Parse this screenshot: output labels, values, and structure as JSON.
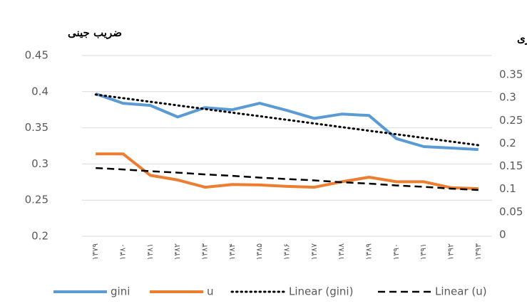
{
  "chart_data": {
    "type": "line",
    "y_title": "ضریب جینی",
    "y2_title": "نرخ بیکاری",
    "categories": [
      "۱۳۷۹",
      "۱۳۸۰",
      "۱۳۸۱",
      "۱۳۸۲",
      "۱۳۸۳",
      "۱۳۸۴",
      "۱۳۸۵",
      "۱۳۸۶",
      "۱۳۸۷",
      "۱۳۸۸",
      "۱۳۸۹",
      "۱۳۹۰",
      "۱۳۹۱",
      "۱۳۹۲",
      "۱۳۹۳"
    ],
    "series": [
      {
        "name": "gini",
        "color": "#5b9bd5",
        "line_style": "solid",
        "axis": "y",
        "values": [
          0.397,
          0.384,
          0.381,
          0.365,
          0.378,
          0.375,
          0.384,
          0.374,
          0.363,
          0.369,
          0.367,
          0.335,
          0.324,
          0.322,
          0.32
        ]
      },
      {
        "name": "u",
        "color": "#ed7d31",
        "line_style": "solid",
        "axis": "y2",
        "values": [
          0.177,
          0.177,
          0.13,
          0.12,
          0.104,
          0.11,
          0.109,
          0.106,
          0.104,
          0.116,
          0.126,
          0.116,
          0.116,
          0.103,
          0.101
        ]
      },
      {
        "name": "Linear (gini)",
        "color": "#000000",
        "line_style": "dotted",
        "axis": "y",
        "values": [
          0.396,
          0.391,
          0.386,
          0.381,
          0.376,
          0.371,
          0.366,
          0.361,
          0.356,
          0.351,
          0.346,
          0.341,
          0.336,
          0.331,
          0.326
        ]
      },
      {
        "name": "Linear (u)",
        "color": "#000000",
        "line_style": "dashed",
        "axis": "y2",
        "values": [
          0.146,
          0.143,
          0.139,
          0.136,
          0.132,
          0.129,
          0.125,
          0.122,
          0.119,
          0.115,
          0.112,
          0.108,
          0.105,
          0.101,
          0.098
        ]
      }
    ],
    "ylim": [
      0.2,
      0.45
    ],
    "yticks": [
      0.2,
      0.25,
      0.3,
      0.35,
      0.4,
      0.45
    ],
    "y2lim": [
      0,
      0.35
    ],
    "y2ticks": [
      0,
      0.05,
      0.1,
      0.15,
      0.2,
      0.25,
      0.3,
      0.35
    ],
    "grid": true,
    "legend": "bottom"
  }
}
